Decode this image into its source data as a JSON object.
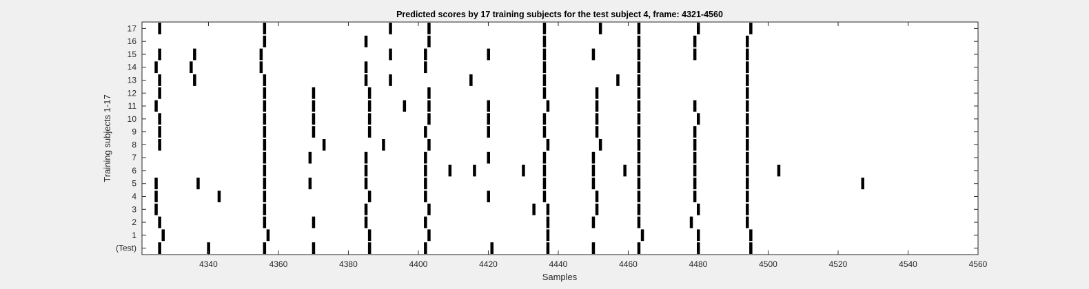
{
  "chart_data": {
    "type": "scatter",
    "title": "Predicted scores by 17 training subjects for the test subject 4, frame: 4321-4560",
    "xlabel": "Samples",
    "ylabel": "Training subjects 1-17",
    "xlim": [
      4321,
      4560
    ],
    "xticks": [
      4340,
      4360,
      4380,
      4400,
      4420,
      4440,
      4460,
      4480,
      4500,
      4520,
      4540,
      4560
    ],
    "ytick_labels": [
      "(Test)",
      "1",
      "2",
      "3",
      "4",
      "5",
      "6",
      "7",
      "8",
      "9",
      "10",
      "11",
      "12",
      "13",
      "14",
      "15",
      "16",
      "17"
    ],
    "grid": false,
    "series": [
      {
        "row": "(Test)",
        "x": [
          4326,
          4340,
          4356,
          4370,
          4386,
          4402,
          4421,
          4437,
          4450,
          4463,
          4480,
          4495
        ]
      },
      {
        "row": "1",
        "x": [
          4327,
          4357,
          4386,
          4403,
          4437,
          4464,
          4480,
          4495
        ]
      },
      {
        "row": "2",
        "x": [
          4326,
          4356,
          4370,
          4385,
          4402,
          4437,
          4450,
          4463,
          4478,
          4494
        ]
      },
      {
        "row": "3",
        "x": [
          4325,
          4356,
          4385,
          4403,
          4433,
          4437,
          4451,
          4463,
          4480,
          4494
        ]
      },
      {
        "row": "4",
        "x": [
          4325,
          4343,
          4356,
          4386,
          4402,
          4420,
          4436,
          4451,
          4463,
          4479,
          4494
        ]
      },
      {
        "row": "5",
        "x": [
          4325,
          4337,
          4356,
          4369,
          4385,
          4402,
          4436,
          4450,
          4463,
          4479,
          4494,
          4527
        ]
      },
      {
        "row": "6",
        "x": [
          4356,
          4385,
          4402,
          4409,
          4416,
          4430,
          4436,
          4450,
          4459,
          4463,
          4479,
          4494,
          4503
        ]
      },
      {
        "row": "7",
        "x": [
          4356,
          4369,
          4385,
          4402,
          4420,
          4436,
          4450,
          4463,
          4479,
          4494
        ]
      },
      {
        "row": "8",
        "x": [
          4326,
          4356,
          4373,
          4390,
          4403,
          4437,
          4452,
          4463,
          4479,
          4494
        ]
      },
      {
        "row": "9",
        "x": [
          4326,
          4356,
          4370,
          4386,
          4402,
          4420,
          4436,
          4451,
          4463,
          4479,
          4494
        ]
      },
      {
        "row": "10",
        "x": [
          4326,
          4356,
          4370,
          4386,
          4403,
          4420,
          4436,
          4451,
          4463,
          4480,
          4494
        ]
      },
      {
        "row": "11",
        "x": [
          4325,
          4356,
          4370,
          4386,
          4396,
          4403,
          4420,
          4437,
          4451,
          4463,
          4479,
          4494
        ]
      },
      {
        "row": "12",
        "x": [
          4326,
          4356,
          4370,
          4386,
          4403,
          4436,
          4451,
          4463,
          4494
        ]
      },
      {
        "row": "13",
        "x": [
          4326,
          4336,
          4356,
          4385,
          4392,
          4415,
          4436,
          4457,
          4463,
          4494
        ]
      },
      {
        "row": "14",
        "x": [
          4325,
          4335,
          4355,
          4385,
          4402,
          4436,
          4463,
          4494
        ]
      },
      {
        "row": "15",
        "x": [
          4326,
          4336,
          4355,
          4392,
          4402,
          4420,
          4436,
          4450,
          4463,
          4479,
          4494
        ]
      },
      {
        "row": "16",
        "x": [
          4356,
          4385,
          4403,
          4436,
          4463,
          4479,
          4494
        ]
      },
      {
        "row": "17",
        "x": [
          4326,
          4356,
          4392,
          4403,
          4436,
          4452,
          4463,
          4480,
          4495
        ]
      }
    ]
  }
}
